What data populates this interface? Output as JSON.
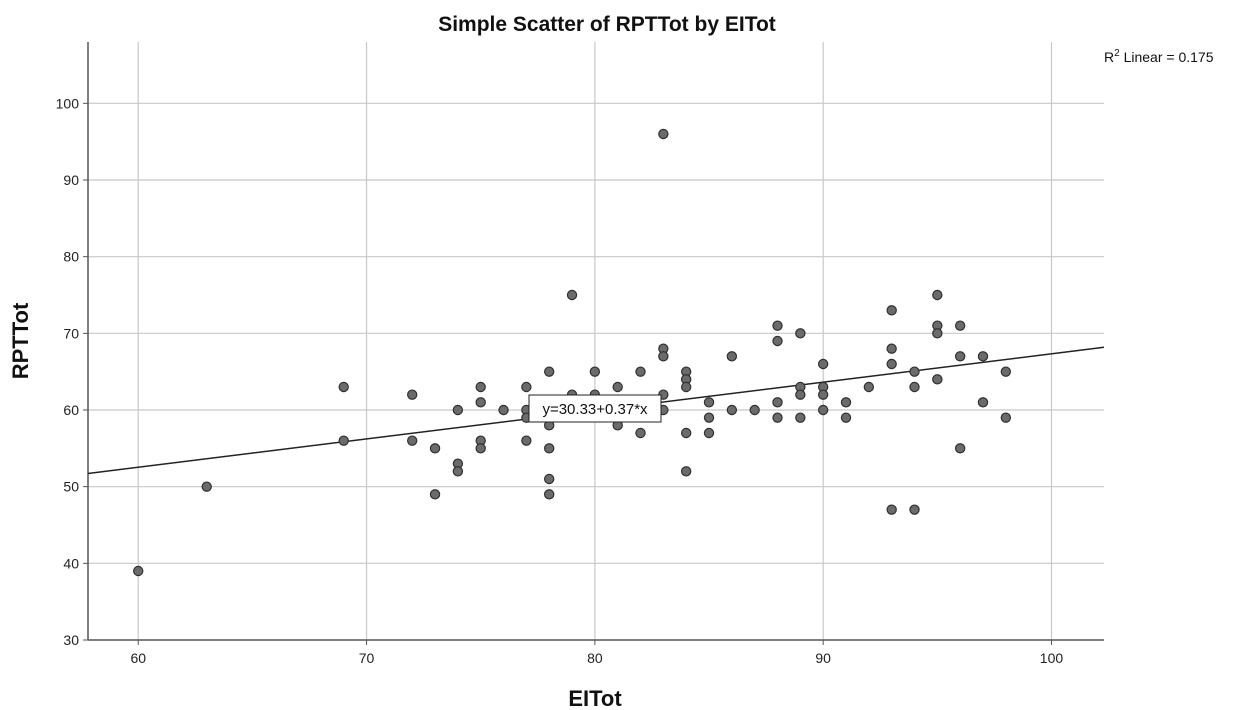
{
  "chart_data": {
    "type": "scatter",
    "title": "Simple Scatter of RPTTot by EITot",
    "xlabel": "EITot",
    "ylabel": "RPTTot",
    "xlim": [
      57.8,
      102.3
    ],
    "ylim": [
      30,
      108
    ],
    "xticks": [
      60,
      70,
      80,
      90,
      100
    ],
    "yticks": [
      30,
      40,
      50,
      60,
      70,
      80,
      90,
      100
    ],
    "grid": true,
    "fit_line": {
      "intercept": 30.33,
      "slope": 0.37,
      "label": "y=30.33+0.37*x"
    },
    "r2_label": {
      "prefix": "R",
      "sup": "2",
      "rest": " Linear = 0.175"
    },
    "colors": {
      "point_fill": "#6b6b6b",
      "point_stroke": "#303030",
      "grid": "#c8c8c8",
      "axis": "#555555",
      "line": "#222222"
    },
    "points": [
      [
        60,
        39
      ],
      [
        63,
        50
      ],
      [
        69,
        63
      ],
      [
        69,
        56
      ],
      [
        72,
        62
      ],
      [
        72,
        56
      ],
      [
        73,
        55
      ],
      [
        73,
        49
      ],
      [
        74,
        60
      ],
      [
        74,
        53
      ],
      [
        74,
        52
      ],
      [
        75,
        63
      ],
      [
        75,
        61
      ],
      [
        75,
        56
      ],
      [
        75,
        55
      ],
      [
        76,
        60
      ],
      [
        77,
        63
      ],
      [
        77,
        60
      ],
      [
        77,
        59
      ],
      [
        77,
        56
      ],
      [
        78,
        65
      ],
      [
        78,
        58
      ],
      [
        78,
        55
      ],
      [
        78,
        51
      ],
      [
        78,
        49
      ],
      [
        79,
        75
      ],
      [
        79,
        62
      ],
      [
        80,
        65
      ],
      [
        80,
        62
      ],
      [
        81,
        63
      ],
      [
        81,
        58
      ],
      [
        82,
        65
      ],
      [
        82,
        57
      ],
      [
        83,
        96
      ],
      [
        83,
        68
      ],
      [
        83,
        67
      ],
      [
        83,
        62
      ],
      [
        83,
        60
      ],
      [
        84,
        65
      ],
      [
        84,
        64
      ],
      [
        84,
        63
      ],
      [
        84,
        57
      ],
      [
        84,
        52
      ],
      [
        85,
        61
      ],
      [
        85,
        59
      ],
      [
        85,
        57
      ],
      [
        86,
        67
      ],
      [
        86,
        60
      ],
      [
        87,
        60
      ],
      [
        88,
        71
      ],
      [
        88,
        69
      ],
      [
        88,
        61
      ],
      [
        88,
        59
      ],
      [
        89,
        70
      ],
      [
        89,
        63
      ],
      [
        89,
        62
      ],
      [
        89,
        59
      ],
      [
        90,
        66
      ],
      [
        90,
        63
      ],
      [
        90,
        62
      ],
      [
        90,
        60
      ],
      [
        91,
        61
      ],
      [
        91,
        59
      ],
      [
        92,
        63
      ],
      [
        93,
        73
      ],
      [
        93,
        68
      ],
      [
        93,
        66
      ],
      [
        93,
        47
      ],
      [
        94,
        65
      ],
      [
        94,
        63
      ],
      [
        94,
        47
      ],
      [
        95,
        75
      ],
      [
        95,
        71
      ],
      [
        95,
        70
      ],
      [
        95,
        64
      ],
      [
        96,
        71
      ],
      [
        96,
        67
      ],
      [
        96,
        55
      ],
      [
        97,
        67
      ],
      [
        97,
        61
      ],
      [
        98,
        65
      ],
      [
        98,
        59
      ]
    ]
  }
}
